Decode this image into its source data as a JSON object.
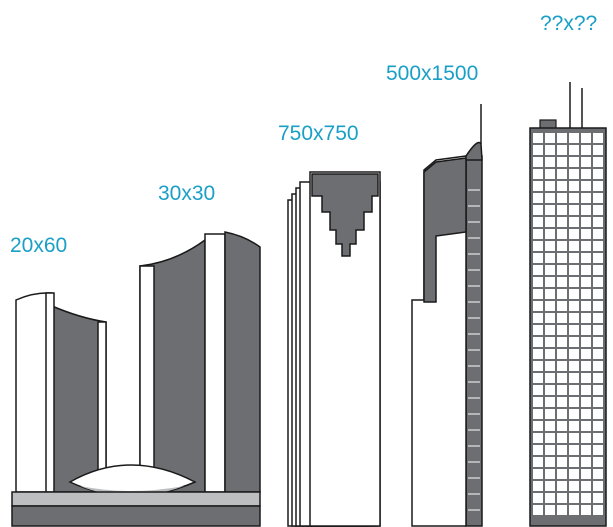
{
  "labels": [
    "20x60",
    "30x30",
    "750x750",
    "500x1500",
    "??x??"
  ],
  "colors": {
    "label": "#1a9fc7",
    "building_dark": "#6d6e71",
    "outline": "#1a1a1a",
    "light": "#ffffff",
    "podium": "#bcbec0"
  }
}
